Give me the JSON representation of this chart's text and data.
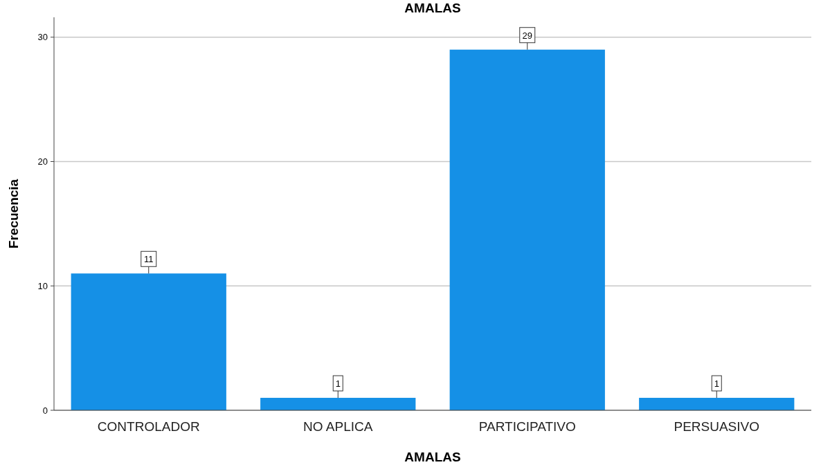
{
  "chart_data": {
    "type": "bar",
    "title": "AMALAS",
    "xlabel": "AMALAS",
    "ylabel": "Frecuencia",
    "categories": [
      "CONTROLADOR",
      "NO APLICA",
      "PARTICIPATIVO",
      "PERSUASIVO"
    ],
    "values": [
      11,
      1,
      29,
      1
    ],
    "color": "#1590e6",
    "ylim": [
      0,
      31.6
    ],
    "yticks": [
      0,
      10,
      20,
      30
    ],
    "grid": "y",
    "data_labels": true
  }
}
